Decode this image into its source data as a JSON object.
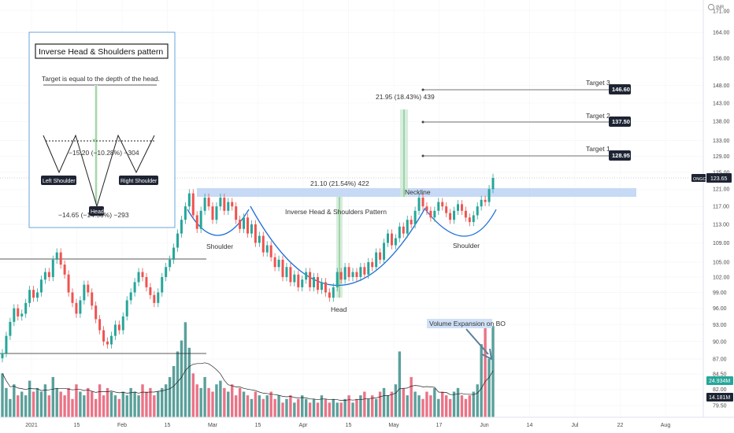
{
  "chart_data": {
    "type": "candlestick",
    "symbol": "ONGC",
    "currency": "INR",
    "y_scale": "log",
    "ylim": [
      78.5,
      177
    ],
    "y_ticks": [
      "171.00",
      "164.00",
      "156.00",
      "148.00",
      "143.00",
      "138.00",
      "133.00",
      "129.00",
      "125.00",
      "121.00",
      "117.00",
      "113.00",
      "109.00",
      "105.00",
      "102.00",
      "99.00",
      "96.00",
      "93.00",
      "90.00",
      "87.00",
      "84.50",
      "82.00",
      "79.50"
    ],
    "x_ticks": [
      "2021",
      "15",
      "Feb",
      "15",
      "Mar",
      "15",
      "Apr",
      "15",
      "May",
      "17",
      "Jun",
      "14",
      "Jul",
      "22",
      "Aug"
    ],
    "last_price": "123.65",
    "last_price_value": 123.65,
    "volume_labels": [
      "24.934M",
      "14.181M"
    ],
    "neckline_zone": [
      119.6,
      121.4
    ],
    "targets": [
      {
        "label": "Target 1",
        "value": "128.95"
      },
      {
        "label": "Target 2",
        "value": "137.50"
      },
      {
        "label": "Target 3",
        "value": "146.60"
      }
    ],
    "measurements": {
      "head_depth": "21.10 (21.54%) 422",
      "projection": "21.95 (18.43%) 439"
    },
    "annotations": {
      "pattern": "Inverse Head & Shoulders Pattern",
      "neckline": "Neckline",
      "left_shoulder": "Shoulder",
      "right_shoulder": "Shoulder",
      "head": "Head",
      "volume": "Volume Expansion on BO"
    },
    "candles_close": [
      88,
      91,
      93.5,
      96,
      94.5,
      95,
      97,
      99.5,
      98,
      99,
      101.5,
      103,
      102,
      105.5,
      107,
      104.5,
      102.5,
      99,
      97,
      95,
      97.5,
      100.5,
      99,
      96.5,
      94,
      92,
      90,
      89.5,
      91,
      93,
      92,
      94.5,
      97.5,
      99,
      101,
      103,
      102,
      100,
      98.5,
      97,
      99,
      102,
      104,
      105.5,
      108,
      111,
      114,
      117,
      120,
      115,
      112,
      116,
      119,
      117,
      114,
      117,
      119,
      116,
      118,
      117,
      114,
      112,
      114.5,
      111,
      113,
      109,
      110.5,
      107,
      108.5,
      106,
      104,
      105.5,
      102,
      104,
      101,
      102.5,
      100,
      101.5,
      103,
      100,
      102,
      99.5,
      101,
      99,
      98,
      100,
      103,
      101.5,
      104,
      102,
      103,
      102,
      104,
      102.5,
      105,
      104,
      107,
      105.5,
      109,
      111,
      108.5,
      110,
      112.5,
      111,
      114,
      113,
      116,
      119,
      117,
      116,
      114.5,
      116,
      118,
      117,
      115.5,
      114,
      116,
      117.5,
      116,
      114.5,
      113.5,
      115,
      117,
      118.5,
      118,
      121,
      123.65
    ],
    "volumes_m": [
      12,
      8,
      5,
      9,
      6,
      7,
      6,
      10,
      7,
      8,
      7,
      9,
      6,
      11,
      8,
      7,
      6,
      8,
      5,
      9,
      7,
      6,
      8,
      7,
      5,
      9,
      6,
      8,
      7,
      6,
      5,
      7,
      6,
      8,
      7,
      6,
      9,
      7,
      8,
      6,
      7,
      8,
      9,
      11,
      14,
      18,
      21,
      26,
      19,
      12,
      9,
      8,
      11,
      8,
      7,
      9,
      10,
      8,
      7,
      9,
      6,
      8,
      7,
      6,
      5,
      7,
      6,
      5,
      6,
      7,
      5,
      6,
      4,
      5,
      6,
      4,
      5,
      6,
      5,
      4,
      5,
      4,
      6,
      5,
      4,
      5,
      4,
      4,
      5,
      6,
      4,
      5,
      6,
      7,
      5,
      6,
      5,
      7,
      8,
      6,
      7,
      9,
      18,
      8,
      6,
      11,
      7,
      6,
      5,
      7,
      6,
      8,
      5,
      7,
      6,
      5,
      7,
      8,
      6,
      5,
      6,
      7,
      9,
      20,
      25,
      16,
      24.934
    ]
  },
  "inset": {
    "title": "Inverse Head & Shoulders pattern",
    "subtitle": "Target is equal to the depth of the head.",
    "left_shoulder": "Left Shoulder",
    "right_shoulder": "Right Shoulder",
    "head": "Head",
    "measure_top": "−15.20 (−10.28%) −304",
    "measure_bottom": "−14.65 (−14.56%) −293"
  },
  "colors": {
    "up": "#26a69a",
    "down": "#ef5350",
    "up_volume": "#3d8f8a",
    "down_volume": "#e85a72",
    "neckline_zone": "#bcd4f5",
    "curve": "#1e6fd9",
    "measure_fill": "#cde8d6",
    "measure_line": "#4caf50",
    "price_label": "#1e2433",
    "inset_border": "#5b9bd5"
  }
}
